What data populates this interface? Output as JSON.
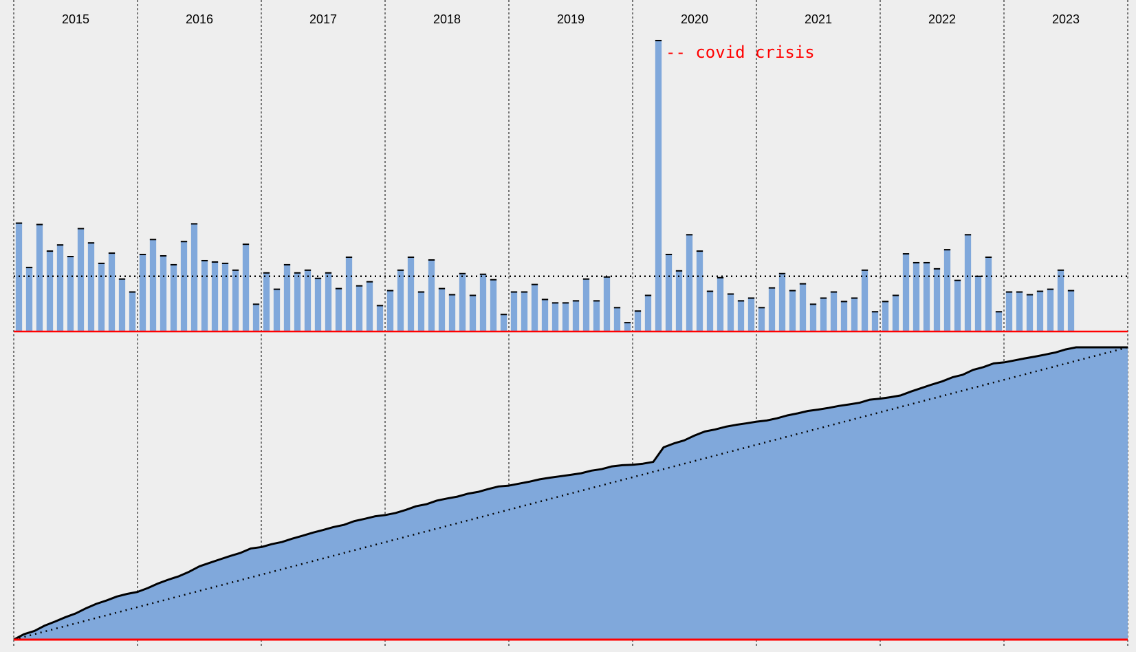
{
  "chart_data": [
    {
      "type": "bar",
      "title": "",
      "xlabel": "",
      "ylabel": "",
      "year_labels": [
        "2015",
        "2016",
        "2017",
        "2018",
        "2019",
        "2020",
        "2021",
        "2022",
        "2023"
      ],
      "start_year": 2015,
      "months_total": 108,
      "values": [
        159,
        94,
        157,
        118,
        127,
        110,
        151,
        130,
        100,
        115,
        77,
        58,
        113,
        135,
        111,
        98,
        132,
        158,
        104,
        102,
        100,
        90,
        128,
        40,
        86,
        62,
        98,
        86,
        90,
        78,
        86,
        63,
        109,
        67,
        73,
        38,
        60,
        90,
        109,
        58,
        105,
        63,
        54,
        85,
        53,
        84,
        76,
        25,
        58,
        58,
        69,
        47,
        42,
        42,
        45,
        77,
        45,
        80,
        35,
        13,
        30,
        53,
        427,
        113,
        89,
        142,
        118,
        59,
        79,
        55,
        45,
        49,
        35,
        64,
        85,
        60,
        70,
        40,
        49,
        58,
        44,
        49,
        90,
        29,
        44,
        53,
        114,
        101,
        101,
        92,
        120,
        75,
        142,
        81,
        109,
        29,
        58,
        58,
        54,
        59,
        62,
        90,
        60,
        0,
        0,
        0,
        0,
        0
      ],
      "mean": 81,
      "ylim": [
        0,
        430
      ],
      "annotation": "-- covid crisis",
      "colors": {
        "bar": "#80a8db",
        "baseline": "#ff0000",
        "annotation": "#ff0000"
      }
    },
    {
      "type": "area",
      "title": "",
      "xlabel": "",
      "ylabel": "",
      "description_note": "cumulative sum of monthly values, with dotted linear reference",
      "colors": {
        "fill": "#80a8db",
        "line": "#000000",
        "baseline": "#ff0000"
      }
    }
  ]
}
